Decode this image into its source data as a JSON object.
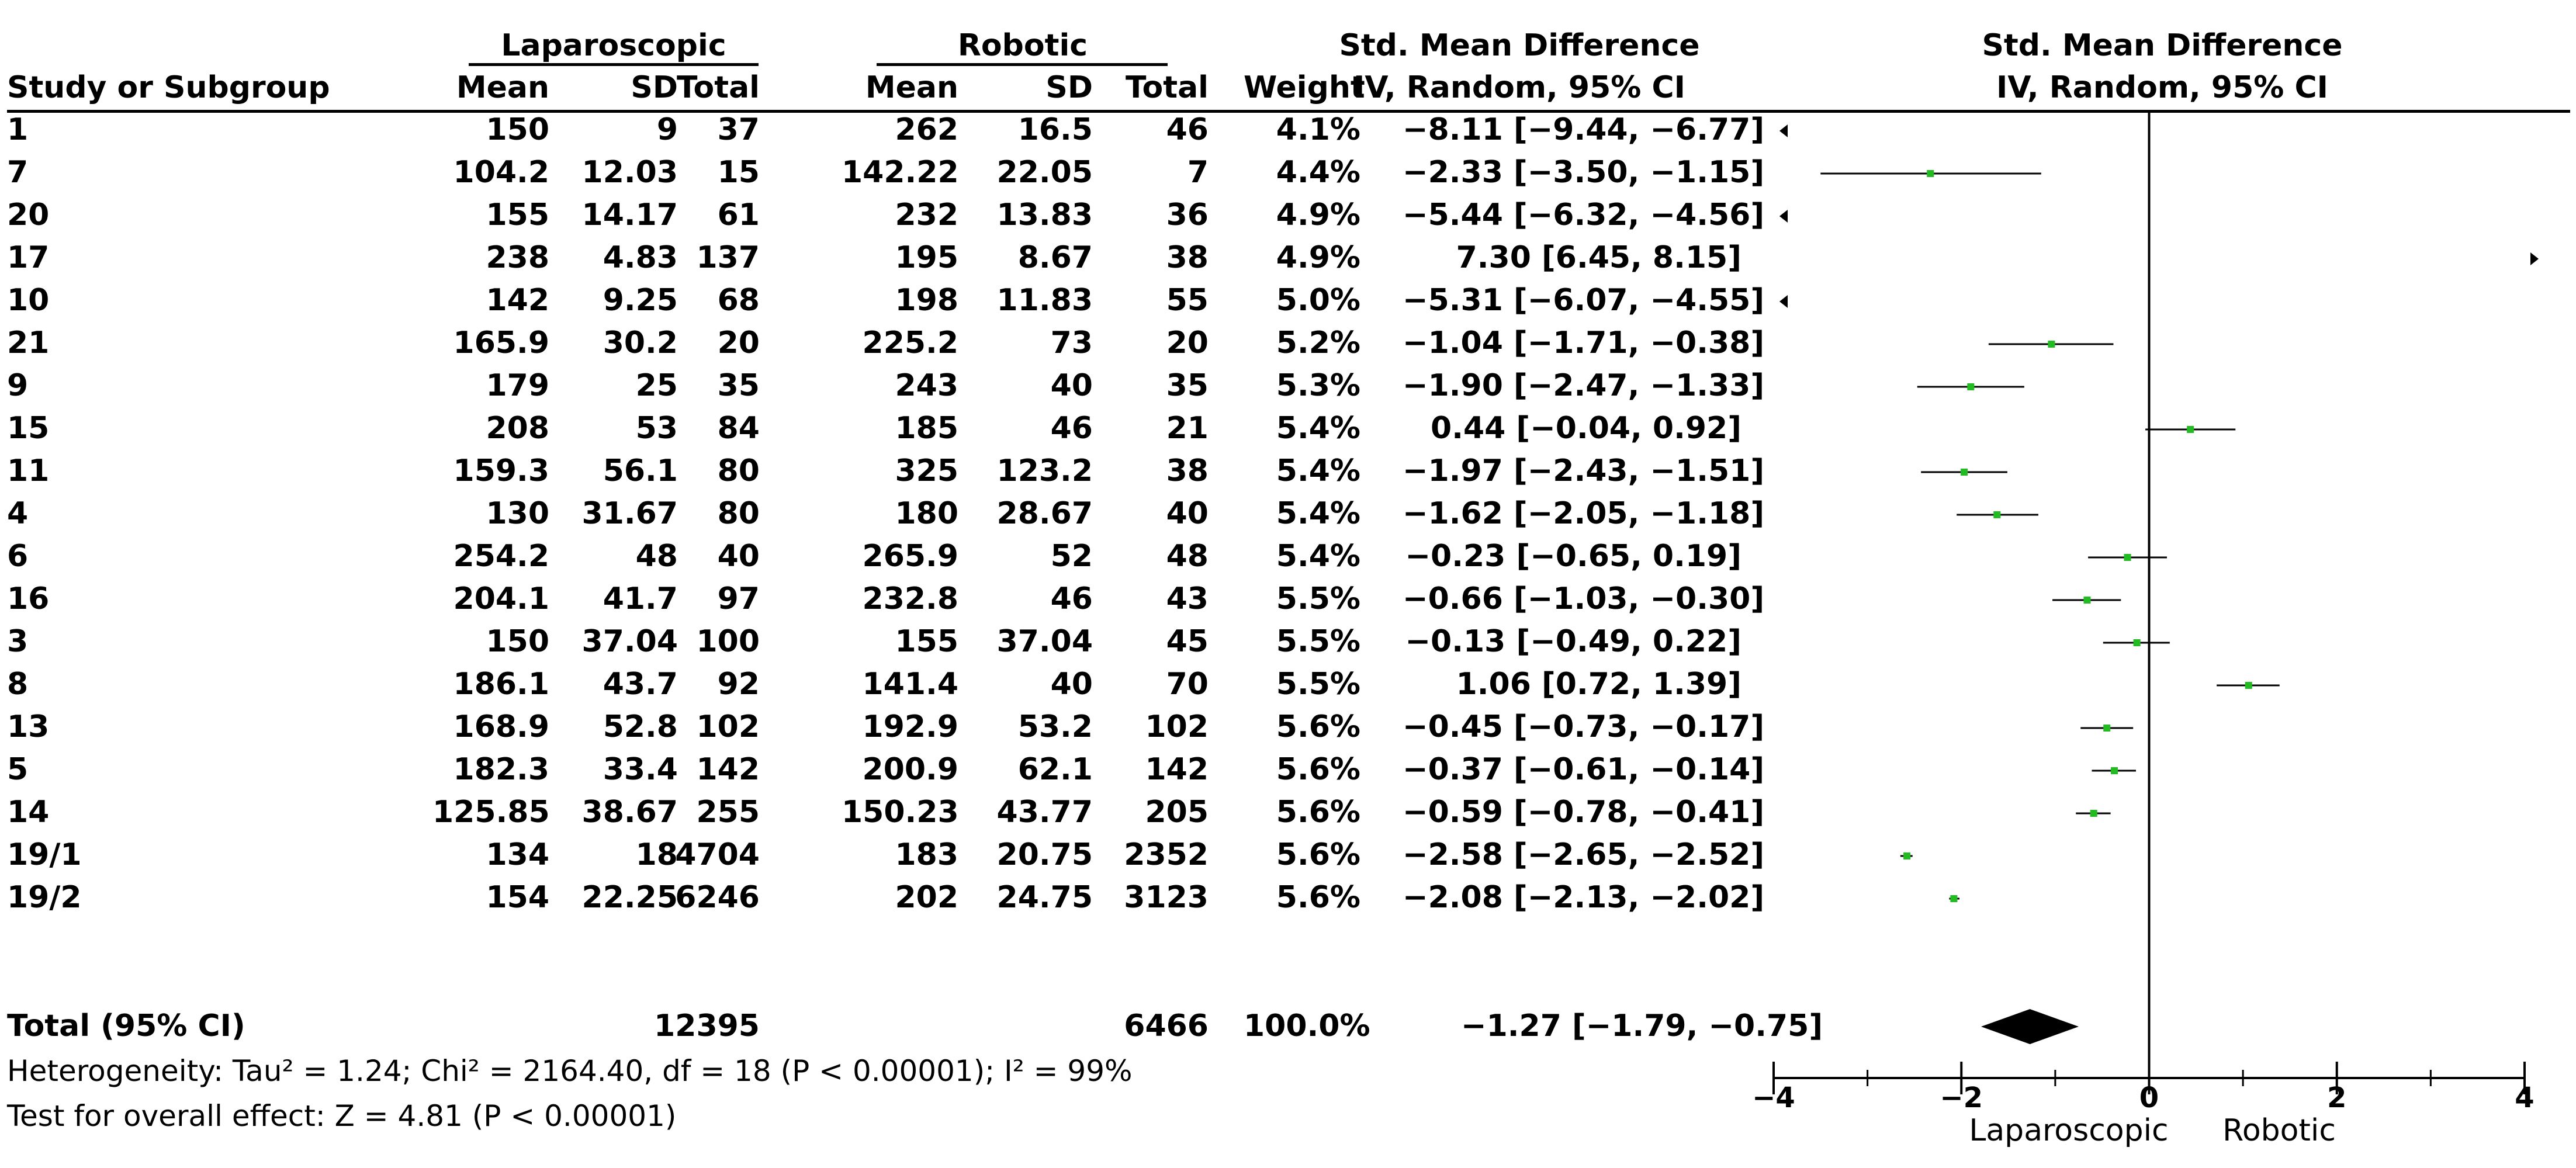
{
  "header": {
    "group1": "Laparoscopic",
    "group2": "Robotic",
    "smd_table": "Std. Mean Difference",
    "smd_plot": "Std. Mean Difference",
    "study": "Study or Subgroup",
    "mean1": "Mean",
    "sd1": "SD",
    "total1": "Total",
    "mean2": "Mean",
    "sd2": "SD",
    "total2": "Total",
    "weight": "Weight",
    "ci_table": "IV, Random, 95% CI",
    "ci_plot": "IV, Random, 95% CI"
  },
  "studies": [
    {
      "id": "1",
      "m1": "150",
      "sd1": "9",
      "n1": "37",
      "m2": "262",
      "sd2": "16.5",
      "n2": "46",
      "w": "4.1%",
      "ci": "−8.11 [−9.44, −6.77]"
    },
    {
      "id": "7",
      "m1": "104.2",
      "sd1": "12.03",
      "n1": "15",
      "m2": "142.22",
      "sd2": "22.05",
      "n2": "7",
      "w": "4.4%",
      "ci": "−2.33 [−3.50, −1.15]"
    },
    {
      "id": "20",
      "m1": "155",
      "sd1": "14.17",
      "n1": "61",
      "m2": "232",
      "sd2": "13.83",
      "n2": "36",
      "w": "4.9%",
      "ci": "−5.44 [−6.32, −4.56]"
    },
    {
      "id": "17",
      "m1": "238",
      "sd1": "4.83",
      "n1": "137",
      "m2": "195",
      "sd2": "8.67",
      "n2": "38",
      "w": "4.9%",
      "ci": "7.30 [6.45, 8.15]"
    },
    {
      "id": "10",
      "m1": "142",
      "sd1": "9.25",
      "n1": "68",
      "m2": "198",
      "sd2": "11.83",
      "n2": "55",
      "w": "5.0%",
      "ci": "−5.31 [−6.07, −4.55]"
    },
    {
      "id": "21",
      "m1": "165.9",
      "sd1": "30.2",
      "n1": "20",
      "m2": "225.2",
      "sd2": "73",
      "n2": "20",
      "w": "5.2%",
      "ci": "−1.04 [−1.71, −0.38]"
    },
    {
      "id": "9",
      "m1": "179",
      "sd1": "25",
      "n1": "35",
      "m2": "243",
      "sd2": "40",
      "n2": "35",
      "w": "5.3%",
      "ci": "−1.90 [−2.47, −1.33]"
    },
    {
      "id": "15",
      "m1": "208",
      "sd1": "53",
      "n1": "84",
      "m2": "185",
      "sd2": "46",
      "n2": "21",
      "w": "5.4%",
      "ci": "0.44 [−0.04, 0.92]"
    },
    {
      "id": "11",
      "m1": "159.3",
      "sd1": "56.1",
      "n1": "80",
      "m2": "325",
      "sd2": "123.2",
      "n2": "38",
      "w": "5.4%",
      "ci": "−1.97 [−2.43, −1.51]"
    },
    {
      "id": "4",
      "m1": "130",
      "sd1": "31.67",
      "n1": "80",
      "m2": "180",
      "sd2": "28.67",
      "n2": "40",
      "w": "5.4%",
      "ci": "−1.62 [−2.05, −1.18]"
    },
    {
      "id": "6",
      "m1": "254.2",
      "sd1": "48",
      "n1": "40",
      "m2": "265.9",
      "sd2": "52",
      "n2": "48",
      "w": "5.4%",
      "ci": "−0.23 [−0.65, 0.19]"
    },
    {
      "id": "16",
      "m1": "204.1",
      "sd1": "41.7",
      "n1": "97",
      "m2": "232.8",
      "sd2": "46",
      "n2": "43",
      "w": "5.5%",
      "ci": "−0.66 [−1.03, −0.30]"
    },
    {
      "id": "3",
      "m1": "150",
      "sd1": "37.04",
      "n1": "100",
      "m2": "155",
      "sd2": "37.04",
      "n2": "45",
      "w": "5.5%",
      "ci": "−0.13 [−0.49, 0.22]"
    },
    {
      "id": "8",
      "m1": "186.1",
      "sd1": "43.7",
      "n1": "92",
      "m2": "141.4",
      "sd2": "40",
      "n2": "70",
      "w": "5.5%",
      "ci": "1.06 [0.72, 1.39]"
    },
    {
      "id": "13",
      "m1": "168.9",
      "sd1": "52.8",
      "n1": "102",
      "m2": "192.9",
      "sd2": "53.2",
      "n2": "102",
      "w": "5.6%",
      "ci": "−0.45 [−0.73, −0.17]"
    },
    {
      "id": "5",
      "m1": "182.3",
      "sd1": "33.4",
      "n1": "142",
      "m2": "200.9",
      "sd2": "62.1",
      "n2": "142",
      "w": "5.6%",
      "ci": "−0.37 [−0.61, −0.14]"
    },
    {
      "id": "14",
      "m1": "125.85",
      "sd1": "38.67",
      "n1": "255",
      "m2": "150.23",
      "sd2": "43.77",
      "n2": "205",
      "w": "5.6%",
      "ci": "−0.59 [−0.78, −0.41]"
    },
    {
      "id": "19/1",
      "m1": "134",
      "sd1": "18",
      "n1": "4704",
      "m2": "183",
      "sd2": "20.75",
      "n2": "2352",
      "w": "5.6%",
      "ci": "−2.58 [−2.65, −2.52]"
    },
    {
      "id": "19/2",
      "m1": "154",
      "sd1": "22.25",
      "n1": "6246",
      "m2": "202",
      "sd2": "24.75",
      "n2": "3123",
      "w": "5.6%",
      "ci": "−2.08 [−2.13, −2.02]"
    }
  ],
  "total": {
    "label": "Total (95% CI)",
    "n1": "12395",
    "n2": "6466",
    "weight": "100.0%",
    "ci": "−1.27 [−1.79, −0.75]"
  },
  "heterogeneity": "Heterogeneity: Tau² = 1.24; Chi² = 2164.40, df = 18 (P < 0.00001); I² = 99%",
  "overall_effect": "Test for overall effect: Z = 4.81 (P < 0.00001)",
  "colors": {
    "point": "#22bb22",
    "diamond": "#000000",
    "line": "#000000"
  },
  "chart_data": {
    "type": "forest",
    "title": "",
    "xlim": [
      -4,
      4
    ],
    "x_ticks": [
      -4,
      -2,
      0,
      2,
      4
    ],
    "x_tick_labels": [
      "−4",
      "−2",
      "0",
      "2",
      "4"
    ],
    "favours_left": "Laparoscopic",
    "favours_right": "Robotic",
    "studies": [
      {
        "id": "1",
        "smd": -8.11,
        "lo": -9.44,
        "hi": -6.77
      },
      {
        "id": "7",
        "smd": -2.33,
        "lo": -3.5,
        "hi": -1.15
      },
      {
        "id": "20",
        "smd": -5.44,
        "lo": -6.32,
        "hi": -4.56
      },
      {
        "id": "17",
        "smd": 7.3,
        "lo": 6.45,
        "hi": 8.15
      },
      {
        "id": "10",
        "smd": -5.31,
        "lo": -6.07,
        "hi": -4.55
      },
      {
        "id": "21",
        "smd": -1.04,
        "lo": -1.71,
        "hi": -0.38
      },
      {
        "id": "9",
        "smd": -1.9,
        "lo": -2.47,
        "hi": -1.33
      },
      {
        "id": "15",
        "smd": 0.44,
        "lo": -0.04,
        "hi": 0.92
      },
      {
        "id": "11",
        "smd": -1.97,
        "lo": -2.43,
        "hi": -1.51
      },
      {
        "id": "4",
        "smd": -1.62,
        "lo": -2.05,
        "hi": -1.18
      },
      {
        "id": "6",
        "smd": -0.23,
        "lo": -0.65,
        "hi": 0.19
      },
      {
        "id": "16",
        "smd": -0.66,
        "lo": -1.03,
        "hi": -0.3
      },
      {
        "id": "3",
        "smd": -0.13,
        "lo": -0.49,
        "hi": 0.22
      },
      {
        "id": "8",
        "smd": 1.06,
        "lo": 0.72,
        "hi": 1.39
      },
      {
        "id": "13",
        "smd": -0.45,
        "lo": -0.73,
        "hi": -0.17
      },
      {
        "id": "5",
        "smd": -0.37,
        "lo": -0.61,
        "hi": -0.14
      },
      {
        "id": "14",
        "smd": -0.59,
        "lo": -0.78,
        "hi": -0.41
      },
      {
        "id": "19/1",
        "smd": -2.58,
        "lo": -2.65,
        "hi": -2.52
      },
      {
        "id": "19/2",
        "smd": -2.08,
        "lo": -2.13,
        "hi": -2.02
      }
    ],
    "pooled": {
      "smd": -1.27,
      "lo": -1.79,
      "hi": -0.75
    }
  }
}
